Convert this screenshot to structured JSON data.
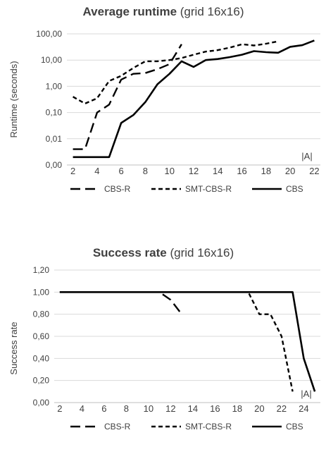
{
  "chart_data": [
    {
      "type": "line",
      "title_bold": "Average runtime",
      "title_rest": " (grid 16x16)",
      "xlabel": "",
      "ylabel": "Runtime (seconds)",
      "y_scale": "log10",
      "ylim": [
        0.001,
        100
      ],
      "yticks": [
        0.001,
        0.01,
        0.1,
        1,
        10,
        100
      ],
      "ytick_labels": [
        "0,00",
        "0,01",
        "0,10",
        "1,00",
        "10,00",
        "100,00"
      ],
      "xlim": [
        1.5,
        22.5
      ],
      "xticks": [
        2,
        4,
        6,
        8,
        10,
        12,
        14,
        16,
        18,
        20,
        22
      ],
      "grid": true,
      "legend": "bottom",
      "annotation": "|A|",
      "series": [
        {
          "name": "CBS-R",
          "dash": "long",
          "x": [
            2,
            3,
            4,
            5,
            6,
            7,
            8,
            9,
            10,
            11
          ],
          "y": [
            0.004,
            0.004,
            0.1,
            0.2,
            1.8,
            3.0,
            3.2,
            4.5,
            7.0,
            40.0
          ]
        },
        {
          "name": "SMT-CBS-R",
          "dash": "short",
          "x": [
            2,
            3,
            4,
            5,
            6,
            7,
            8,
            9,
            10,
            11,
            12,
            13,
            14,
            15,
            16,
            17,
            18,
            19
          ],
          "y": [
            0.4,
            0.22,
            0.35,
            1.6,
            2.5,
            5.0,
            9.0,
            9.0,
            10.0,
            12.0,
            16.0,
            21.0,
            24.0,
            30.0,
            40.0,
            36.0,
            42.0,
            52.0
          ]
        },
        {
          "name": "CBS",
          "dash": "solid",
          "x": [
            2,
            3,
            4,
            5,
            6,
            7,
            8,
            9,
            10,
            11,
            12,
            13,
            14,
            15,
            16,
            17,
            18,
            19,
            20,
            21,
            22
          ],
          "y": [
            0.002,
            0.002,
            0.002,
            0.002,
            0.04,
            0.08,
            0.25,
            1.2,
            3.0,
            9.0,
            5.5,
            10.0,
            11.0,
            13.0,
            16.0,
            22.0,
            20.0,
            19.0,
            32.0,
            37.0,
            56.0
          ]
        }
      ]
    },
    {
      "type": "line",
      "title_bold": "Success rate",
      "title_rest": " (grid 16x16)",
      "xlabel": "",
      "ylabel": "Success rate",
      "y_scale": "linear",
      "ylim": [
        0,
        1.2
      ],
      "yticks": [
        0,
        0.2,
        0.4,
        0.6,
        0.8,
        1.0,
        1.2
      ],
      "ytick_labels": [
        "0,00",
        "0,20",
        "0,40",
        "0,60",
        "0,80",
        "1,00",
        "1,20"
      ],
      "xlim": [
        1.5,
        25.5
      ],
      "xticks": [
        2,
        4,
        6,
        8,
        10,
        12,
        14,
        16,
        18,
        20,
        22,
        24
      ],
      "grid": true,
      "legend": "bottom",
      "annotation": "|A|",
      "series": [
        {
          "name": "CBS-R",
          "dash": "long",
          "x": [
            2,
            3,
            4,
            5,
            6,
            7,
            8,
            9,
            10,
            11,
            12,
            13
          ],
          "y": [
            1,
            1,
            1,
            1,
            1,
            1,
            1,
            1,
            1,
            1,
            0.93,
            0.8
          ]
        },
        {
          "name": "SMT-CBS-R",
          "dash": "short",
          "x": [
            2,
            4,
            6,
            8,
            10,
            12,
            14,
            16,
            18,
            19,
            20,
            21,
            22,
            23
          ],
          "y": [
            1,
            1,
            1,
            1,
            1,
            1,
            1,
            1,
            1,
            1,
            0.8,
            0.8,
            0.6,
            0.1
          ]
        },
        {
          "name": "CBS",
          "dash": "solid",
          "x": [
            2,
            4,
            6,
            8,
            10,
            12,
            14,
            16,
            18,
            20,
            22,
            23,
            24,
            25
          ],
          "y": [
            1,
            1,
            1,
            1,
            1,
            1,
            1,
            1,
            1,
            1,
            1,
            1,
            0.4,
            0.1
          ]
        }
      ]
    }
  ]
}
